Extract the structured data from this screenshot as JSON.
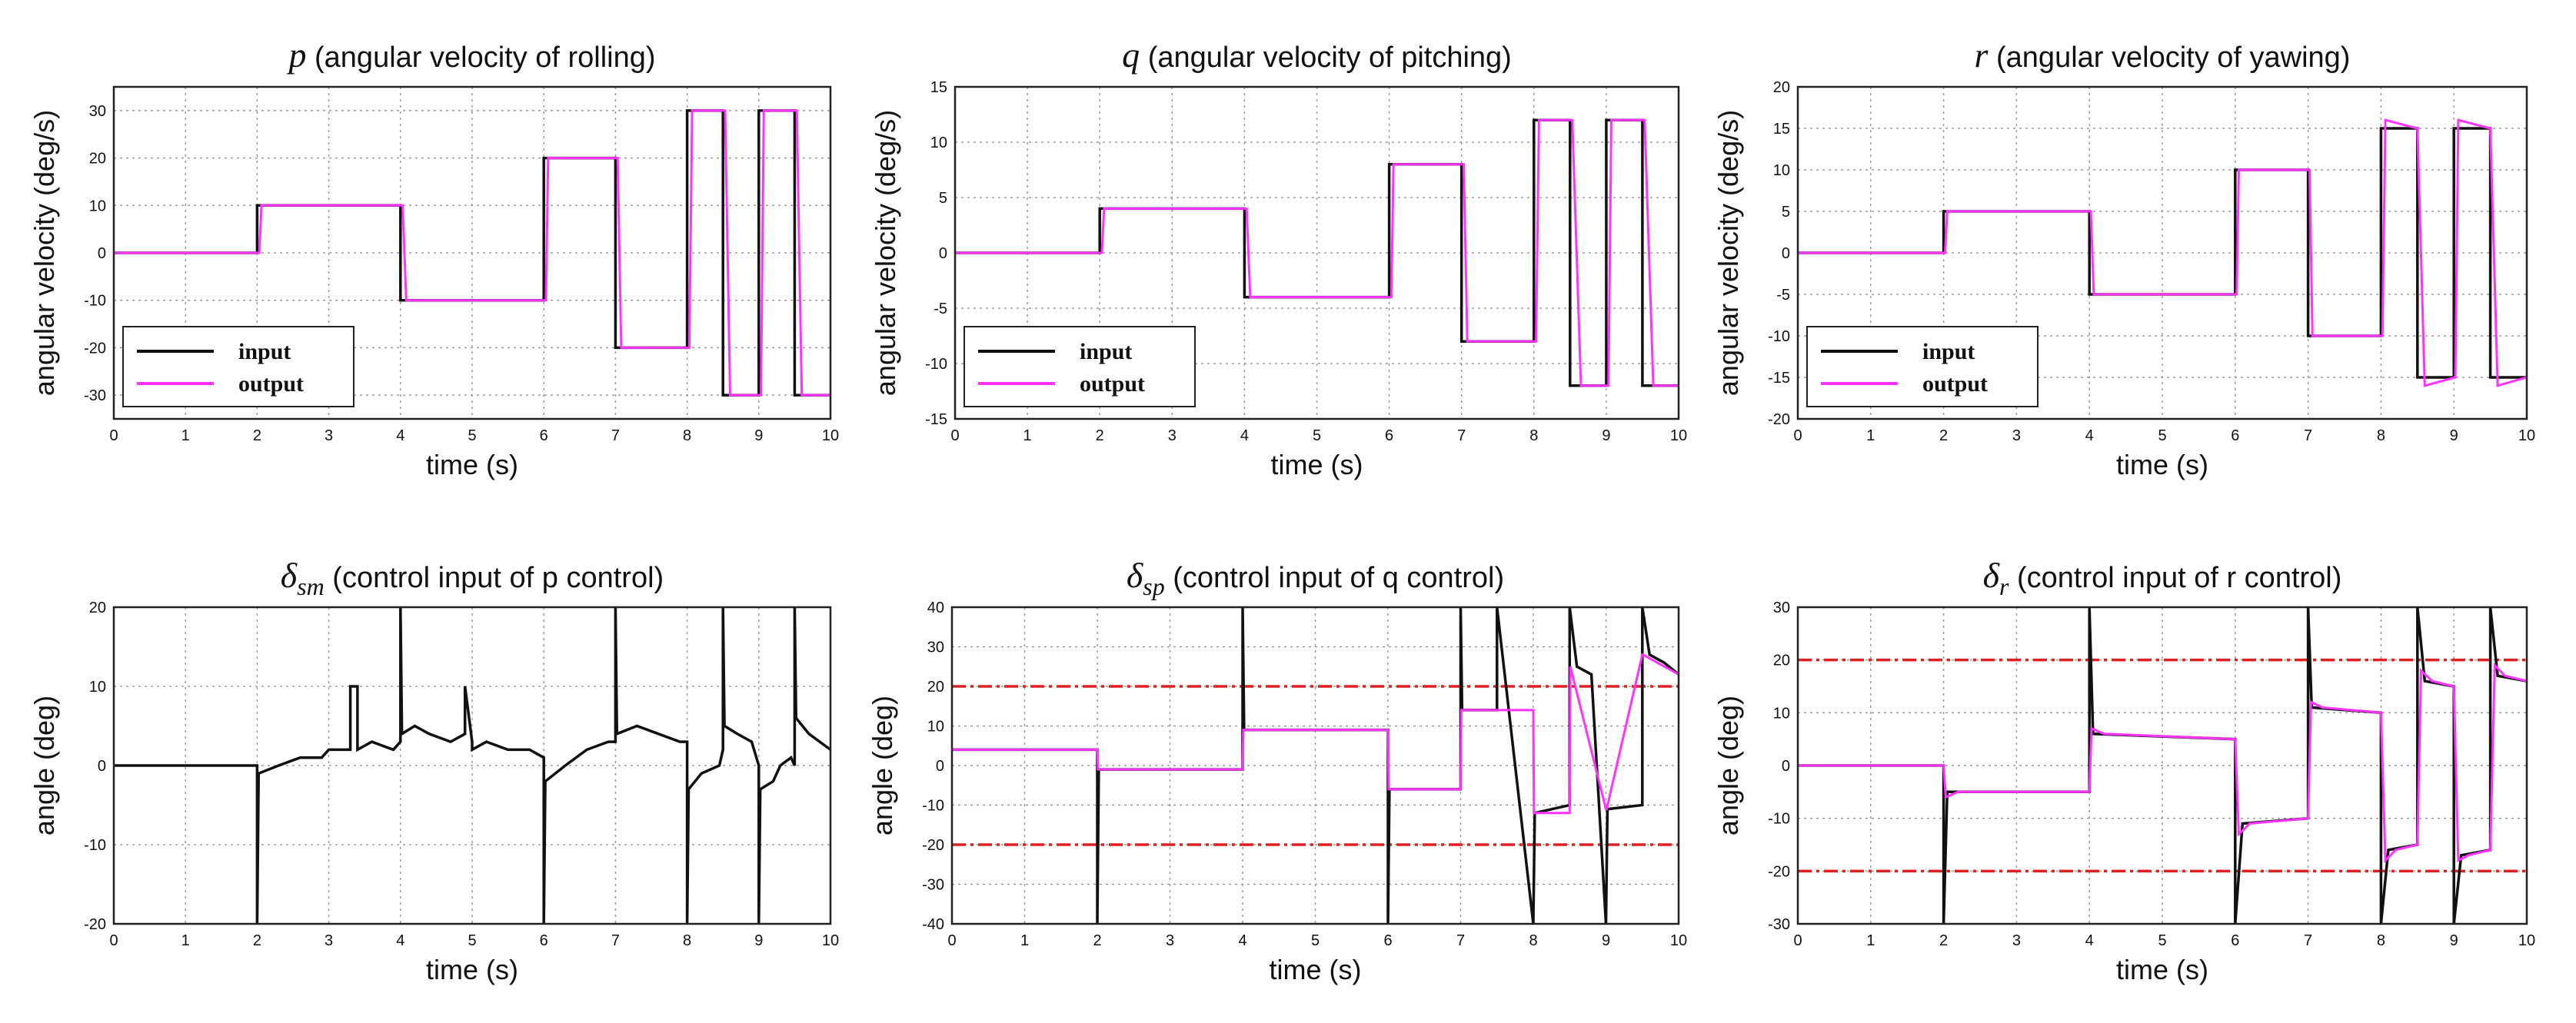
{
  "colors": {
    "input": "#111111",
    "output": "#ff33ff",
    "limit": "#e02020",
    "grid": "#9a9a9a",
    "frame": "#222222"
  },
  "chart_data": [
    {
      "type": "line",
      "title_symbol": "p",
      "title_sub": "",
      "title_text": " (angular velocity of rolling)",
      "xlabel": "time (s)",
      "ylabel": "angular velocity (deg/s)",
      "xlim": [
        0,
        10
      ],
      "ylim": [
        -35,
        35
      ],
      "xticks": [
        "0",
        "1",
        "2",
        "3",
        "4",
        "5",
        "6",
        "7",
        "8",
        "9",
        "10"
      ],
      "yticks": [
        "-30",
        "-20",
        "-10",
        "0",
        "10",
        "20",
        "30"
      ],
      "ytick_values": [
        -30,
        -20,
        -10,
        0,
        10,
        20,
        30
      ],
      "legend": {
        "position": "bottom-left",
        "input_label": "input",
        "output_label": "output"
      },
      "series": [
        {
          "name": "input",
          "style": "solid",
          "x": [
            0,
            2,
            2,
            4,
            4,
            6,
            6,
            7,
            7,
            8,
            8,
            8.5,
            8.5,
            9,
            9,
            9.5,
            9.5,
            10
          ],
          "y": [
            0,
            0,
            10,
            10,
            -10,
            -10,
            20,
            20,
            -20,
            -20,
            30,
            30,
            -30,
            -30,
            30,
            30,
            -30,
            -30
          ]
        },
        {
          "name": "output",
          "style": "solid",
          "x": [
            0,
            2.03,
            2.06,
            4.03,
            4.08,
            6.03,
            6.06,
            7.03,
            7.08,
            8.03,
            8.07,
            8.53,
            8.6,
            9.03,
            9.07,
            9.53,
            9.6,
            10
          ],
          "y": [
            0,
            0,
            10,
            10,
            -10,
            -10,
            20,
            20,
            -20,
            -20,
            30,
            30,
            -30,
            -30,
            30,
            30,
            -30,
            -30
          ]
        }
      ]
    },
    {
      "type": "line",
      "title_symbol": "q",
      "title_sub": "",
      "title_text": " (angular velocity of pitching)",
      "xlabel": "time (s)",
      "ylabel": "angular velocity (deg/s)",
      "xlim": [
        0,
        10
      ],
      "ylim": [
        -15,
        15
      ],
      "xticks": [
        "0",
        "1",
        "2",
        "3",
        "4",
        "5",
        "6",
        "7",
        "8",
        "9",
        "10"
      ],
      "yticks": [
        "-15",
        "-10",
        "-5",
        "0",
        "5",
        "10",
        "15"
      ],
      "ytick_values": [
        -15,
        -10,
        -5,
        0,
        5,
        10,
        15
      ],
      "legend": {
        "position": "bottom-left",
        "input_label": "input",
        "output_label": "output"
      },
      "series": [
        {
          "name": "input",
          "style": "solid",
          "x": [
            0,
            2,
            2,
            4,
            4,
            6,
            6,
            7,
            7,
            8,
            8,
            8.5,
            8.5,
            9,
            9,
            9.5,
            9.5,
            10
          ],
          "y": [
            0,
            0,
            4,
            4,
            -4,
            -4,
            8,
            8,
            -8,
            -8,
            12,
            12,
            -12,
            -12,
            12,
            12,
            -12,
            -12
          ]
        },
        {
          "name": "output",
          "style": "solid",
          "x": [
            0,
            2.03,
            2.06,
            4.03,
            4.08,
            6.03,
            6.06,
            7.03,
            7.08,
            8.03,
            8.07,
            8.53,
            8.65,
            9.03,
            9.07,
            9.53,
            9.65,
            10
          ],
          "y": [
            0,
            0,
            4,
            4,
            -4,
            -4,
            8,
            8,
            -8,
            -8,
            12,
            12,
            -12,
            -12,
            12,
            12,
            -12,
            -12
          ]
        }
      ]
    },
    {
      "type": "line",
      "title_symbol": "r",
      "title_sub": "",
      "title_text": " (angular velocity of yawing)",
      "xlabel": "time (s)",
      "ylabel": "angular velocity (deg/s)",
      "xlim": [
        0,
        10
      ],
      "ylim": [
        -20,
        20
      ],
      "xticks": [
        "0",
        "1",
        "2",
        "3",
        "4",
        "5",
        "6",
        "7",
        "8",
        "9",
        "10"
      ],
      "yticks": [
        "-20",
        "-15",
        "-10",
        "-5",
        "0",
        "5",
        "10",
        "15",
        "20"
      ],
      "ytick_values": [
        -20,
        -15,
        -10,
        -5,
        0,
        5,
        10,
        15,
        20
      ],
      "legend": {
        "position": "bottom-left",
        "input_label": "input",
        "output_label": "output"
      },
      "series": [
        {
          "name": "input",
          "style": "solid",
          "x": [
            0,
            2,
            2,
            4,
            4,
            6,
            6,
            7,
            7,
            8,
            8,
            8.5,
            8.5,
            9,
            9,
            9.5,
            9.5,
            10
          ],
          "y": [
            0,
            0,
            5,
            5,
            -5,
            -5,
            10,
            10,
            -10,
            -10,
            15,
            15,
            -15,
            -15,
            15,
            15,
            -15,
            -15
          ]
        },
        {
          "name": "output",
          "style": "solid",
          "x": [
            0,
            2.02,
            2.05,
            4.02,
            4.06,
            6.02,
            6.05,
            7.02,
            7.06,
            8.02,
            8.06,
            8.5,
            8.6,
            9.02,
            9.06,
            9.5,
            9.6,
            10
          ],
          "y": [
            0,
            0,
            5,
            5,
            -5,
            -5,
            10,
            10,
            -10,
            -10,
            16,
            15,
            -16,
            -15,
            16,
            15,
            -16,
            -15
          ]
        }
      ]
    },
    {
      "type": "line",
      "title_symbol": "δ",
      "title_sub": "sm",
      "title_text": " (control input of p control)",
      "xlabel": "time (s)",
      "ylabel": "angle (deg)",
      "xlim": [
        0,
        10
      ],
      "ylim": [
        -20,
        20
      ],
      "xticks": [
        "0",
        "1",
        "2",
        "3",
        "4",
        "5",
        "6",
        "7",
        "8",
        "9",
        "10"
      ],
      "yticks": [
        "-20",
        "-10",
        "0",
        "10",
        "20"
      ],
      "ytick_values": [
        -20,
        -10,
        0,
        10,
        20
      ],
      "series": [
        {
          "name": "input",
          "style": "solid",
          "x": [
            0,
            2,
            2,
            2.02,
            2.3,
            2.6,
            2.9,
            3,
            3.3,
            3.3,
            3.4,
            3.4,
            3.6,
            3.9,
            4,
            4,
            4.02,
            4.2,
            4.4,
            4.7,
            4.9,
            4.9,
            5,
            5,
            5.2,
            5.5,
            5.8,
            6,
            6,
            6.02,
            6.3,
            6.6,
            6.9,
            7,
            7,
            7.02,
            7.3,
            7.6,
            7.9,
            8,
            8,
            8.02,
            8.2,
            8.45,
            8.5,
            8.5,
            8.52,
            8.7,
            8.9,
            9,
            9,
            9.02,
            9.2,
            9.3,
            9.45,
            9.5,
            9.5,
            9.52,
            9.7,
            10
          ],
          "y": [
            0,
            0,
            -20,
            -1,
            0,
            1,
            1,
            2,
            2,
            10,
            10,
            2,
            3,
            2,
            3,
            20,
            4,
            5,
            4,
            3,
            4,
            10,
            3,
            2,
            3,
            2,
            2,
            1,
            -20,
            -2,
            0,
            2,
            3,
            3,
            20,
            4,
            5,
            4,
            3,
            3,
            -20,
            -3,
            -1,
            0,
            2,
            20,
            5,
            4,
            3,
            0,
            -20,
            -3,
            -2,
            0,
            1,
            0,
            20,
            6,
            4,
            2
          ]
        }
      ]
    },
    {
      "type": "line",
      "title_symbol": "δ",
      "title_sub": "sp",
      "title_text": " (control input of q control)",
      "xlabel": "time (s)",
      "ylabel": "angle (deg)",
      "xlim": [
        0,
        10
      ],
      "ylim": [
        -40,
        40
      ],
      "xticks": [
        "0",
        "1",
        "2",
        "3",
        "4",
        "5",
        "6",
        "7",
        "8",
        "9",
        "10"
      ],
      "yticks": [
        "-40",
        "-30",
        "-20",
        "-10",
        "0",
        "10",
        "20",
        "30",
        "40"
      ],
      "ytick_values": [
        -40,
        -30,
        -20,
        -10,
        0,
        10,
        20,
        30,
        40
      ],
      "limits": [
        20,
        -20
      ],
      "series": [
        {
          "name": "input",
          "style": "solid",
          "x": [
            0,
            2,
            2,
            2.02,
            4,
            4,
            4.02,
            6,
            6,
            6.02,
            7,
            7,
            7.02,
            7.5,
            7.5,
            8,
            8,
            8.02,
            8.5,
            8.5,
            8.6,
            8.8,
            9,
            9,
            9.02,
            9.5,
            9.5,
            9.6,
            9.8,
            10
          ],
          "y": [
            4,
            4,
            -40,
            -1,
            -1,
            40,
            9,
            9,
            -40,
            -6,
            -6,
            40,
            14,
            14,
            40,
            -40,
            -40,
            -12,
            -10,
            40,
            25,
            23,
            -40,
            -40,
            -11,
            -10,
            40,
            28,
            26,
            23
          ]
        },
        {
          "name": "output",
          "style": "solid",
          "x": [
            0,
            2,
            2.01,
            4,
            4.01,
            6,
            6.01,
            7,
            7.01,
            8,
            8.01,
            8.5,
            8.51,
            9,
            9.01,
            9.5,
            9.51,
            10
          ],
          "y": [
            4,
            4,
            -1,
            -1,
            9,
            9,
            -6,
            -6,
            14,
            14,
            -12,
            -12,
            25,
            -11,
            -11,
            28,
            28,
            23
          ]
        }
      ]
    },
    {
      "type": "line",
      "title_symbol": "δ",
      "title_sub": "r",
      "title_text": " (control input of r control)",
      "xlabel": "time (s)",
      "ylabel": "angle (deg)",
      "xlim": [
        0,
        10
      ],
      "ylim": [
        -30,
        30
      ],
      "xticks": [
        "0",
        "1",
        "2",
        "3",
        "4",
        "5",
        "6",
        "7",
        "8",
        "9",
        "10"
      ],
      "yticks": [
        "-30",
        "-20",
        "-10",
        "0",
        "10",
        "20",
        "30"
      ],
      "ytick_values": [
        -30,
        -20,
        -10,
        0,
        10,
        20,
        30
      ],
      "limits": [
        20,
        -20
      ],
      "series": [
        {
          "name": "input",
          "style": "solid",
          "x": [
            0,
            2,
            2,
            2.05,
            4,
            4,
            4.05,
            6,
            6,
            6.1,
            7,
            7,
            7.05,
            8,
            8,
            8.1,
            8.5,
            8.5,
            8.6,
            9,
            9,
            9.1,
            9.5,
            9.5,
            9.6,
            10
          ],
          "y": [
            0,
            0,
            -30,
            -5,
            -5,
            30,
            6,
            5,
            -30,
            -11,
            -10,
            30,
            11,
            10,
            -30,
            -16,
            -15,
            30,
            16,
            15,
            -30,
            -17,
            -16,
            30,
            17,
            16
          ]
        },
        {
          "name": "output",
          "style": "solid",
          "x": [
            0,
            2,
            2.03,
            2.2,
            4,
            4.03,
            4.2,
            6,
            6.05,
            6.2,
            7,
            7.04,
            7.2,
            8,
            8.06,
            8.2,
            8.5,
            8.55,
            8.7,
            9,
            9.06,
            9.2,
            9.5,
            9.56,
            9.7,
            10
          ],
          "y": [
            0,
            0,
            -6,
            -5,
            -5,
            7,
            6,
            5,
            -13,
            -11,
            -10,
            12,
            11,
            10,
            -18,
            -16,
            -15,
            18,
            16,
            15,
            -18,
            -17,
            -16,
            19,
            17,
            16
          ]
        }
      ]
    }
  ]
}
